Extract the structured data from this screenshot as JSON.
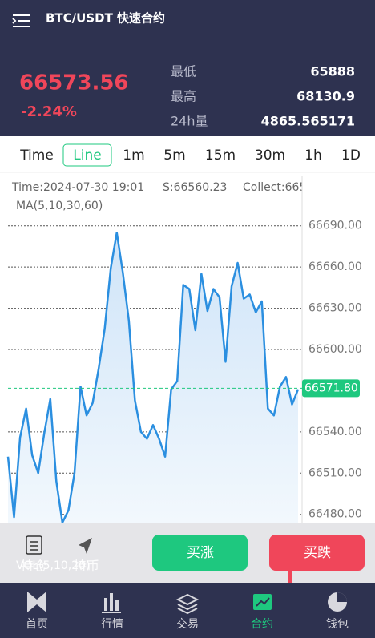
{
  "header": {
    "title": "BTC/USDT 快速合约"
  },
  "ticker": {
    "price": 66573.56,
    "change": "-2.24%",
    "stats": [
      {
        "label": "最低",
        "value": 65888
      },
      {
        "label": "最高",
        "value": 68130.9
      },
      {
        "label": "24h量",
        "value": 4865.565171
      }
    ]
  },
  "tabs": [
    "Time",
    "Line",
    "1m",
    "5m",
    "15m",
    "30m",
    "1h",
    "1D"
  ],
  "info": {
    "time": "Time:2024-07-30 19:01",
    "s": "S:66560.23",
    "collect": "Collect:665",
    "ma": "MA(5,10,30,60)",
    "vol": "VOL(5,10,20)"
  },
  "chart_data": {
    "type": "line",
    "color": "#2b8fe0",
    "values": [
      66522,
      66478,
      66536,
      66557,
      66523,
      66510,
      66539,
      66564,
      66504,
      66474,
      66483,
      66510,
      66573,
      66552,
      66561,
      66586,
      66615,
      66659,
      66685,
      66656,
      66621,
      66563,
      66540,
      66535,
      66545,
      66535,
      66522,
      66571,
      66577,
      66647,
      66644,
      66614,
      66655,
      66628,
      66644,
      66638,
      66591,
      66646,
      66663,
      66637,
      66640,
      66627,
      66635,
      66557,
      66552,
      66573,
      66580,
      66560,
      66571
    ],
    "ylim": [
      66474,
      66726
    ],
    "yticks": [
      {
        "value": 66480,
        "label": "66480.00"
      },
      {
        "value": 66510,
        "label": "66510.00"
      },
      {
        "value": 66540,
        "label": "66540.00"
      },
      {
        "value": 66600,
        "label": "66600.00"
      },
      {
        "value": 66630,
        "label": "66630.00"
      },
      {
        "value": 66660,
        "label": "66660.00"
      },
      {
        "value": 66690,
        "label": "66690.00"
      }
    ],
    "current": {
      "value": 66571.8,
      "label": "66571.80"
    },
    "grid": true
  },
  "actions": {
    "hold": "持仓",
    "coin": "持币",
    "buy_up": "买涨",
    "buy_down": "买跌"
  },
  "nav": [
    "首页",
    "行情",
    "交易",
    "合约",
    "钱包"
  ]
}
